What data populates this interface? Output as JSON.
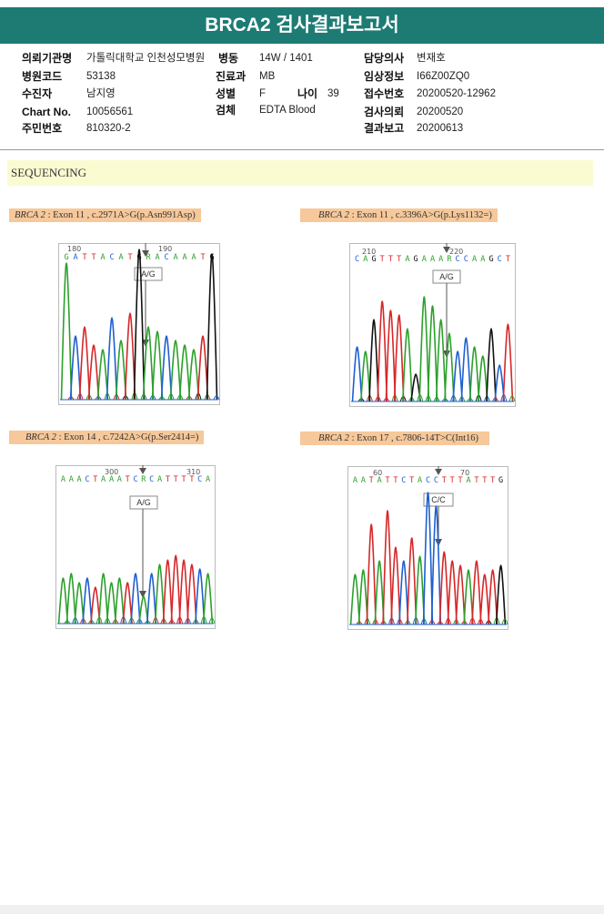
{
  "report": {
    "title": "BRCA2 검사결과보고서"
  },
  "patient": {
    "institution_label": "의뢰기관명",
    "institution_value": "가톨릭대학교 인천성모병원",
    "ward_label": "병동",
    "ward_value": "14W / 1401",
    "doctor_label": "담당의사",
    "doctor_value": "변재호",
    "hospital_code_label": "병원코드",
    "hospital_code_value": "53138",
    "dept_label": "진료과",
    "dept_value": "MB",
    "clinical_label": "임상정보",
    "clinical_value": "I66Z00ZQ0",
    "examinee_label": "수진자",
    "examinee_value": "남지영",
    "sex_label": "성별",
    "sex_value": "F",
    "age_label": "나이",
    "age_value": "39",
    "receipt_label": "접수번호",
    "receipt_value": "20200520-12962",
    "chart_label": "Chart No.",
    "chart_value": "10056561",
    "specimen_label": "검체",
    "specimen_value": "EDTA Blood",
    "request_label": "검사의뢰",
    "request_value": "20200520",
    "id_label": "주민번호",
    "id_value": "810320-2",
    "result_label": "결과보고",
    "result_value": "20200613"
  },
  "section": {
    "title": "SEQUENCING"
  },
  "panels": [
    {
      "gene": "BRCA 2",
      "variant": " : Exon 11 , c.2971A>G(p.Asn991Asp)",
      "pos_left": "180",
      "pos_right": "190",
      "sequence": "GATTACATGRACAAATG",
      "call": "A/G",
      "colors": [
        "#2ca02c",
        "#1f5fd0",
        "#d62728",
        "#d62728",
        "#2ca02c",
        "#1f5fd0",
        "#2ca02c",
        "#d62728",
        "#111111",
        "#2ca02c",
        "#2ca02c",
        "#1f5fd0",
        "#2ca02c",
        "#2ca02c",
        "#2ca02c",
        "#d62728",
        "#111111"
      ]
    },
    {
      "gene": "BRCA 2",
      "variant": " : Exon 11 , c.3396A>G(p.Lys1132=)",
      "pos_left": "210",
      "pos_right": "220",
      "sequence": "CAGTTTAGAAARCCAAGCT",
      "call": "A/G",
      "colors": [
        "#1f5fd0",
        "#2ca02c",
        "#111111",
        "#d62728",
        "#d62728",
        "#d62728",
        "#2ca02c",
        "#111111",
        "#2ca02c",
        "#2ca02c",
        "#2ca02c",
        "#2ca02c",
        "#1f5fd0",
        "#1f5fd0",
        "#2ca02c",
        "#2ca02c",
        "#111111",
        "#1f5fd0",
        "#d62728"
      ]
    },
    {
      "gene": "BRCA 2",
      "variant": " : Exon 14 , c.7242A>G(p.Ser2414=)",
      "pos_left": "300",
      "pos_right": "310",
      "sequence": "AAACTAAATCRCATTTTCA",
      "call": "A/G",
      "colors": [
        "#2ca02c",
        "#2ca02c",
        "#2ca02c",
        "#1f5fd0",
        "#d62728",
        "#2ca02c",
        "#2ca02c",
        "#2ca02c",
        "#d62728",
        "#1f5fd0",
        "#2ca02c",
        "#1f5fd0",
        "#2ca02c",
        "#d62728",
        "#d62728",
        "#d62728",
        "#d62728",
        "#1f5fd0",
        "#2ca02c"
      ]
    },
    {
      "gene": "BRCA 2",
      "variant": " : Exon 17 , c.7806-14T>C(Int16)",
      "pos_left": "60",
      "pos_right": "70",
      "sequence": "AATATTCTACCTTTATTTG",
      "call": "C/C",
      "colors": [
        "#2ca02c",
        "#2ca02c",
        "#d62728",
        "#2ca02c",
        "#d62728",
        "#d62728",
        "#1f5fd0",
        "#d62728",
        "#2ca02c",
        "#1f5fd0",
        "#1f5fd0",
        "#d62728",
        "#d62728",
        "#d62728",
        "#2ca02c",
        "#d62728",
        "#d62728",
        "#d62728",
        "#111111"
      ]
    }
  ]
}
